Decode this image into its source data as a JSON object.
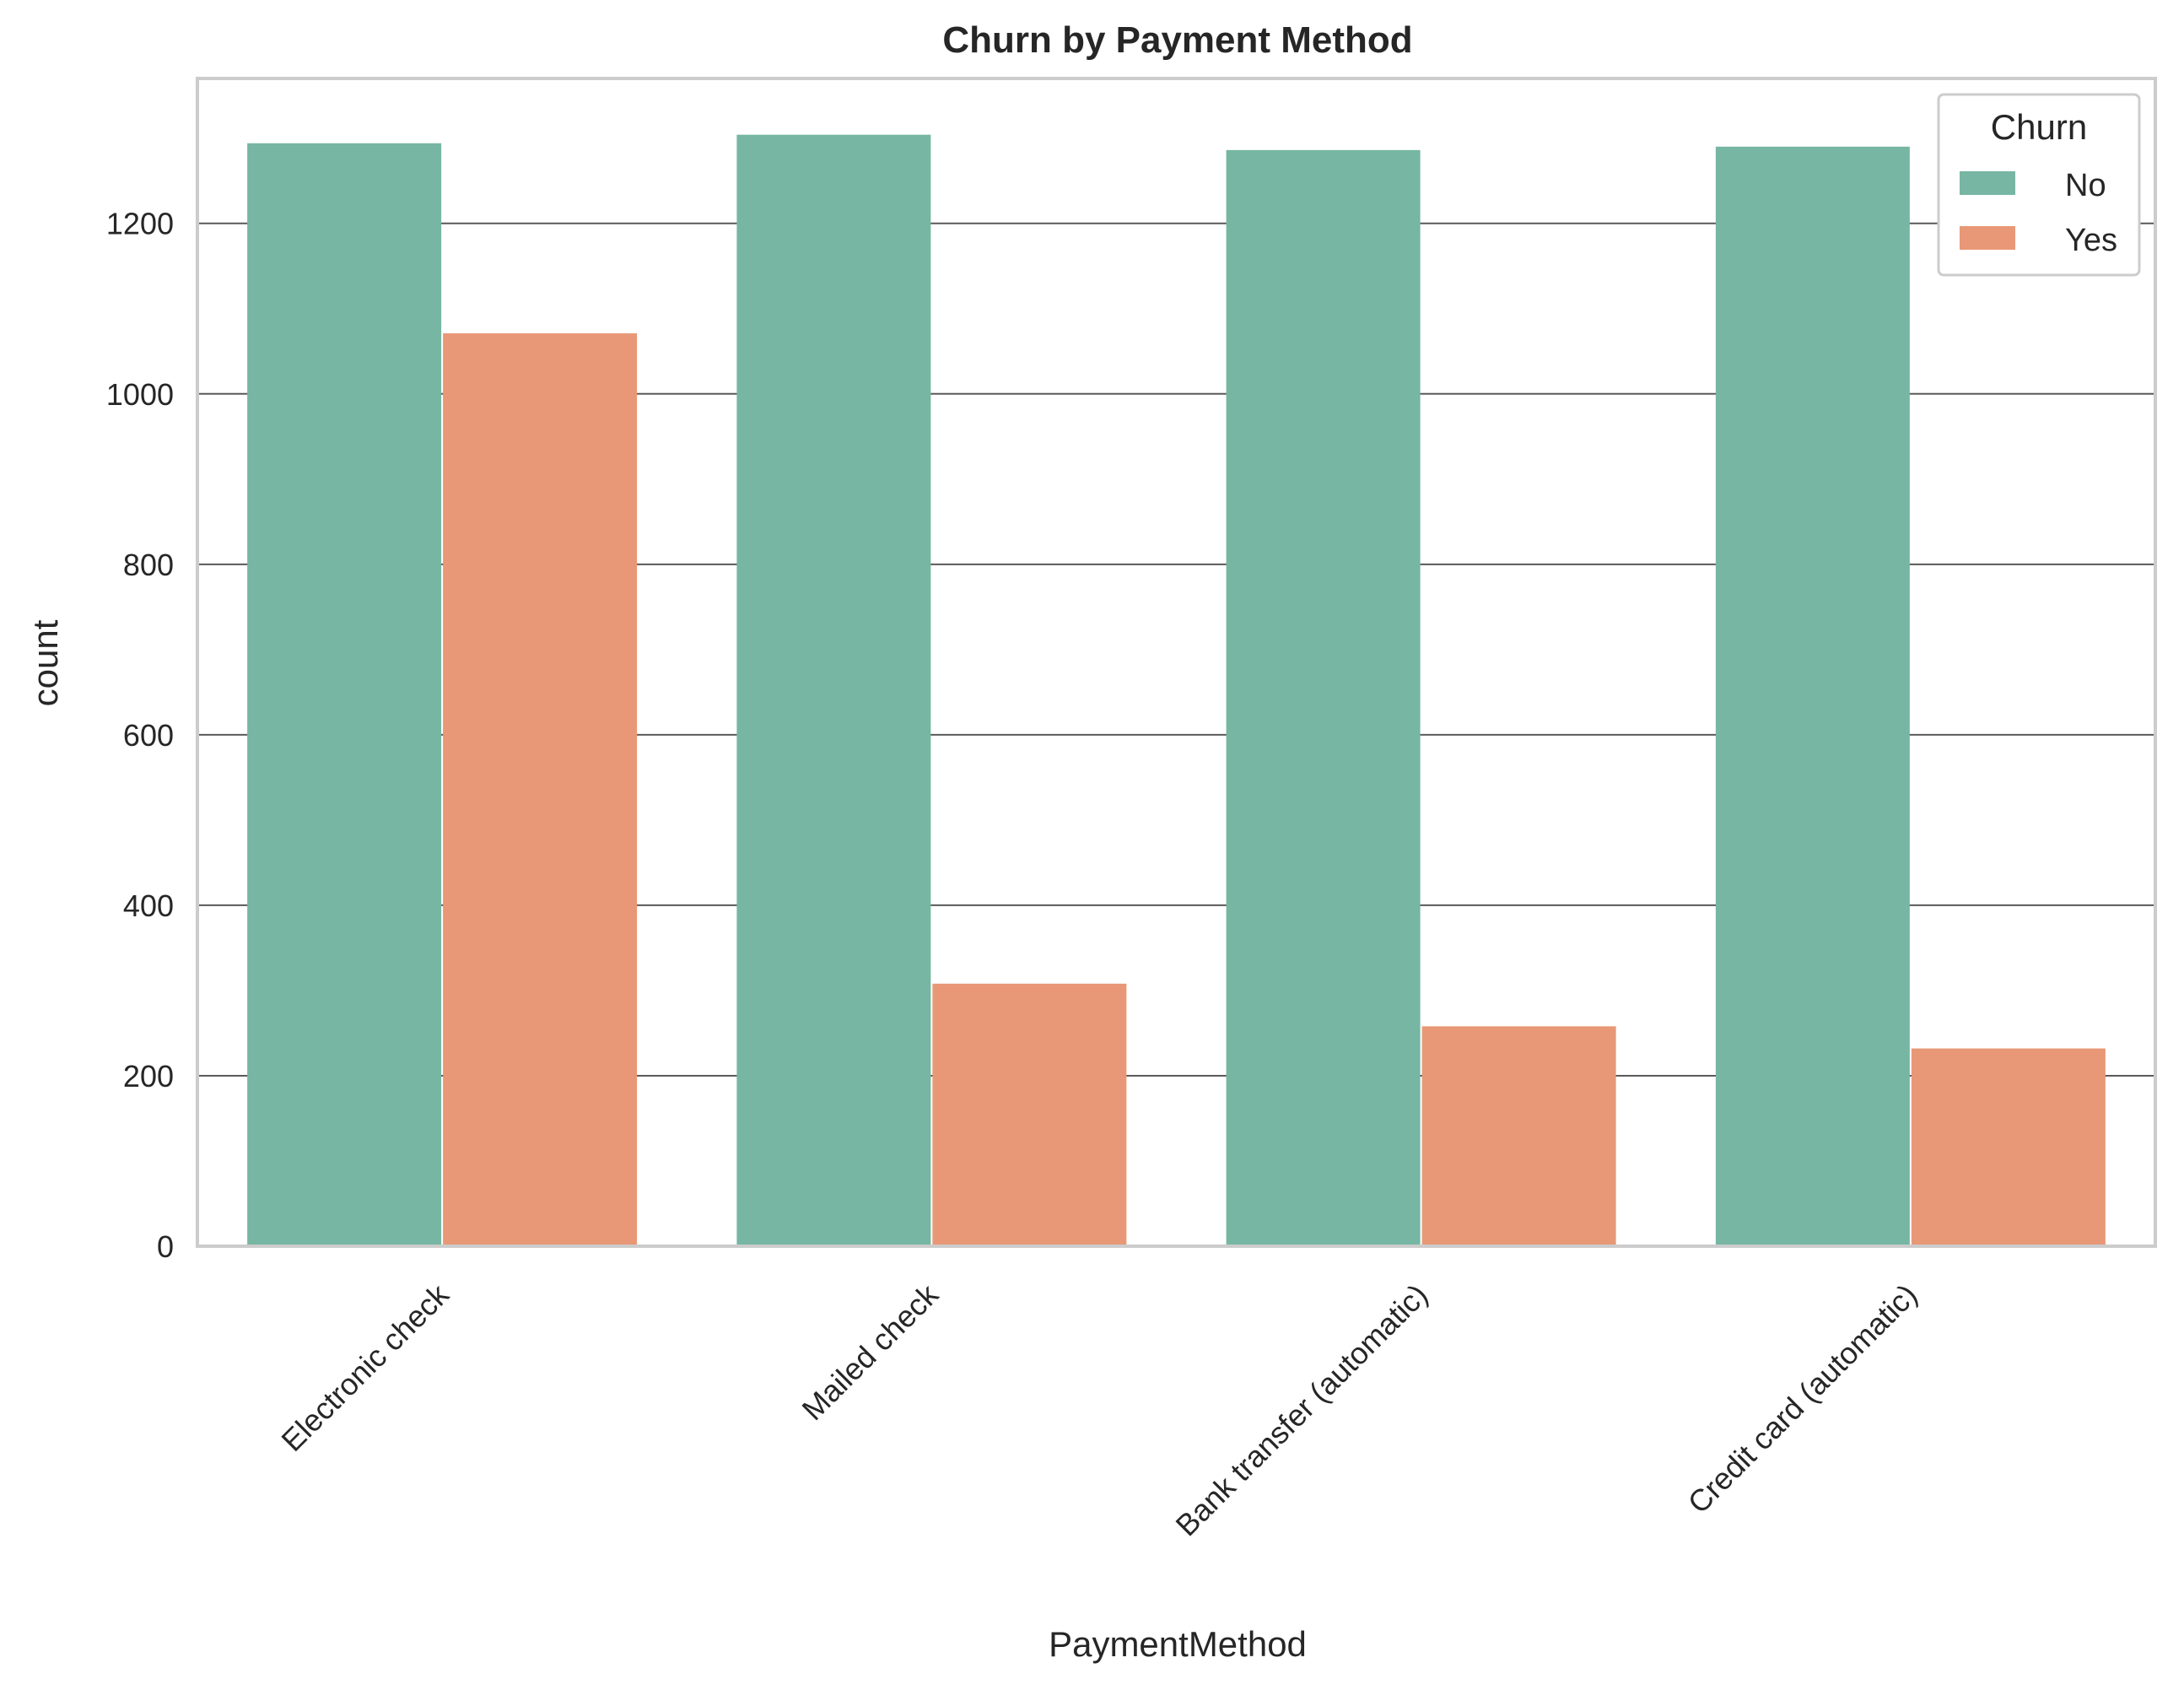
{
  "chart_data": {
    "type": "bar",
    "title": "Churn by Payment Method",
    "xlabel": "PaymentMethod",
    "ylabel": "count",
    "categories": [
      "Electronic check",
      "Mailed check",
      "Bank transfer (automatic)",
      "Credit card (automatic)"
    ],
    "series": [
      {
        "name": "No",
        "color": "#76b6a2",
        "values": [
          1294,
          1304,
          1286,
          1290
        ]
      },
      {
        "name": "Yes",
        "color": "#e89876",
        "values": [
          1071,
          308,
          258,
          232
        ]
      }
    ],
    "ylim": [
      0,
      1370
    ],
    "yticks": [
      "0",
      "200",
      "400",
      "600",
      "800",
      "1000",
      "1200"
    ],
    "grid": true,
    "legend": {
      "title": "Churn",
      "position": "top-right"
    }
  }
}
